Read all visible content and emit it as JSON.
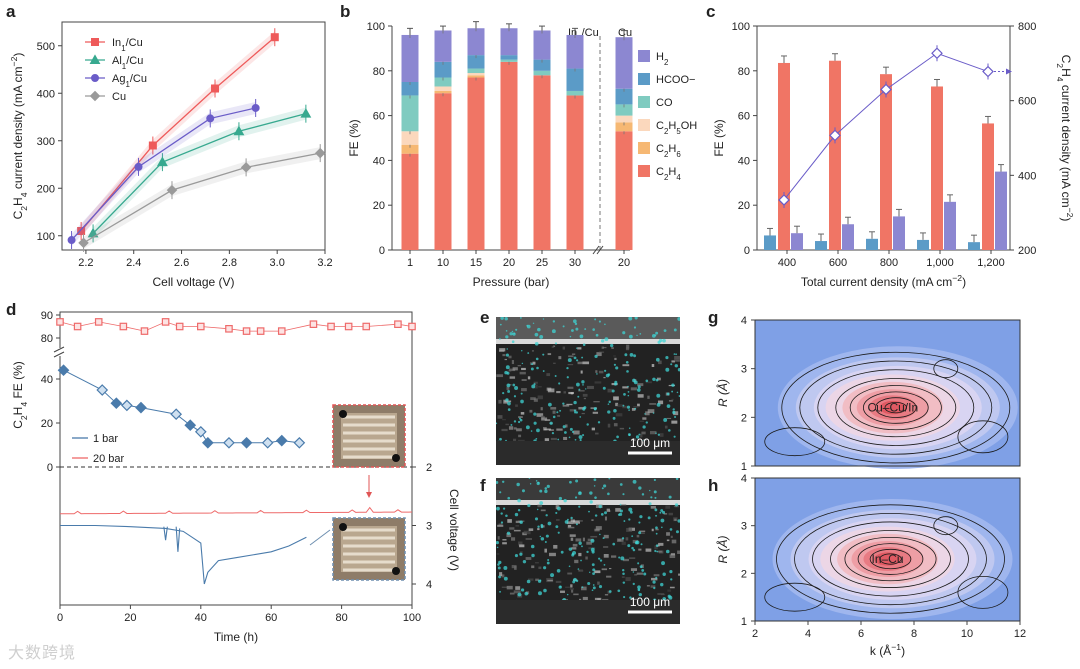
{
  "panels": {
    "a": "a",
    "b": "b",
    "c": "c",
    "d": "d",
    "e": "e",
    "f": "f",
    "g": "g",
    "h": "h"
  },
  "chart_data": [
    {
      "id": "a",
      "type": "scatter",
      "xlabel": "Cell voltage (V)",
      "ylabel": "C2H4 current density (mA cm−2)",
      "xlim": [
        2.1,
        3.2
      ],
      "ylim": [
        70,
        550
      ],
      "xticks": [
        2.2,
        2.4,
        2.6,
        2.8,
        3.0,
        3.2
      ],
      "yticks": [
        100,
        200,
        300,
        400,
        500
      ],
      "legend": "top-left",
      "series": [
        {
          "name": "In1/Cu",
          "color": "#ee5a5a",
          "marker": "square",
          "x": [
            2.18,
            2.48,
            2.74,
            2.99
          ],
          "y": [
            110,
            290,
            410,
            518
          ]
        },
        {
          "name": "Al1/Cu",
          "color": "#37a98f",
          "marker": "triangle",
          "x": [
            2.23,
            2.52,
            2.84,
            3.12
          ],
          "y": [
            105,
            255,
            320,
            357
          ]
        },
        {
          "name": "Ag1/Cu",
          "color": "#6a5cc8",
          "marker": "circle",
          "x": [
            2.14,
            2.42,
            2.72,
            2.91
          ],
          "y": [
            91,
            245,
            347,
            369
          ]
        },
        {
          "name": "Cu",
          "color": "#9a9a9a",
          "marker": "diamond",
          "x": [
            2.19,
            2.56,
            2.87,
            3.18
          ],
          "y": [
            85,
            196,
            244,
            274
          ]
        }
      ]
    },
    {
      "id": "b",
      "type": "bar",
      "xlabel": "Pressure (bar)",
      "ylabel": "FE (%)",
      "ylim": [
        0,
        100
      ],
      "yticks": [
        0,
        20,
        40,
        60,
        80,
        100
      ],
      "categories": [
        "1",
        "10",
        "15",
        "20",
        "25",
        "30",
        "20"
      ],
      "group_labels": [
        "In1/Cu",
        "Cu"
      ],
      "legend": "right",
      "series": [
        {
          "name": "C2H4",
          "color": "#f07565",
          "values": [
            43,
            70,
            77,
            84,
            78,
            69,
            53
          ]
        },
        {
          "name": "C2H6",
          "color": "#f6b873",
          "values": [
            4,
            1,
            1,
            0,
            0,
            0,
            4
          ]
        },
        {
          "name": "C2H5OH",
          "color": "#fbd8bd",
          "values": [
            6,
            2,
            1,
            0,
            0,
            0,
            3
          ]
        },
        {
          "name": "CO",
          "color": "#7fcbc0",
          "values": [
            16,
            4,
            2,
            1,
            2,
            2,
            5
          ]
        },
        {
          "name": "HCOO−",
          "color": "#5b9bc7",
          "values": [
            6,
            7,
            6,
            2,
            5,
            10,
            7
          ]
        },
        {
          "name": "H2",
          "color": "#8c87d1",
          "values": [
            21,
            14,
            12,
            12,
            13,
            15,
            23
          ]
        }
      ],
      "errors": [
        3,
        2,
        3,
        2,
        2,
        3,
        3
      ]
    },
    {
      "id": "c",
      "type": "bar",
      "xlabel": "Total current density (mA cm−2)",
      "ylabel": "FE (%)",
      "y2label": "C2H4 current density (mA cm−2)",
      "ylim": [
        0,
        100
      ],
      "y2lim": [
        200,
        800
      ],
      "yticks": [
        0,
        20,
        40,
        60,
        80,
        100
      ],
      "y2ticks": [
        200,
        400,
        600,
        800
      ],
      "categories": [
        "400",
        "600",
        "800",
        "1,000",
        "1,200"
      ],
      "series": [
        {
          "name": "FE C2H4",
          "color": "#f07565",
          "values": [
            83.5,
            84.5,
            78.5,
            73,
            56.5
          ]
        },
        {
          "name": "FE HCOO−",
          "color": "#5b9bc7",
          "values": [
            6.5,
            4,
            5,
            4.5,
            3.5
          ]
        },
        {
          "name": "FE H2",
          "color": "#8c87d1",
          "values": [
            7.5,
            11.5,
            15,
            21.5,
            35
          ]
        },
        {
          "name": "C2H4 current density",
          "color": "#6a5cc8",
          "axis": "right",
          "values": [
            334,
            507,
            630,
            727,
            678
          ]
        }
      ]
    },
    {
      "id": "d",
      "type": "line",
      "xlabel": "Time (h)",
      "ylabel": "C2H4 FE (%)",
      "y2label": "Cell voltage (V)",
      "xlim": [
        0,
        100
      ],
      "xticks": [
        0,
        20,
        40,
        60,
        80,
        100
      ],
      "yticks_top": [
        80,
        90
      ],
      "yticks_bottom": [
        0,
        20,
        40
      ],
      "y2ticks": [
        2,
        3,
        4
      ],
      "legend": "bottom-left",
      "series": [
        {
          "name": "1 bar",
          "color": "#4a7bab",
          "marker": "diamond",
          "x": [
            1,
            12,
            16,
            19,
            23,
            33,
            37,
            40,
            42,
            48,
            53,
            59,
            63,
            68
          ],
          "y": [
            44,
            35,
            29,
            28,
            27,
            24,
            19,
            16,
            11,
            11,
            11,
            11,
            12,
            11
          ]
        },
        {
          "name": "20 bar",
          "color": "#ee6a6a",
          "marker": "square",
          "x": [
            0,
            5,
            11,
            18,
            24,
            30,
            34,
            40,
            48,
            53,
            57,
            63,
            72,
            77,
            82,
            87,
            96,
            100
          ],
          "y": [
            87,
            85,
            87,
            85,
            83,
            87,
            85,
            85,
            84,
            83,
            83,
            83,
            86,
            85,
            85,
            85,
            86,
            85
          ]
        }
      ],
      "voltage": {
        "20 bar": {
          "x": [
            0,
            20,
            40,
            60,
            80,
            100
          ],
          "y": [
            2.8,
            2.8,
            2.79,
            2.78,
            2.78,
            2.77
          ]
        },
        "1 bar": {
          "x": [
            0,
            10,
            20,
            30,
            35,
            40,
            41,
            42,
            45,
            50,
            55,
            60,
            65,
            70
          ],
          "y": [
            3.0,
            3.0,
            3.02,
            3.05,
            3.1,
            3.3,
            4.0,
            3.8,
            3.6,
            3.55,
            3.5,
            3.45,
            3.35,
            3.2
          ]
        }
      }
    },
    {
      "id": "e",
      "type": "image",
      "scale_bar": "100 μm"
    },
    {
      "id": "f",
      "type": "image",
      "scale_bar": "100 μm"
    },
    {
      "id": "g",
      "type": "heatmap",
      "xlabel": "",
      "ylabel": "R (Å)",
      "yticks": [
        1,
        2,
        3,
        4
      ],
      "annotation": "Cu–Cu/In",
      "peak": {
        "k": 7.2,
        "R": 2.2
      }
    },
    {
      "id": "h",
      "type": "heatmap",
      "xlabel": "k (Å−1)",
      "ylabel": "R (Å)",
      "xticks": [
        2,
        4,
        6,
        8,
        10,
        12
      ],
      "yticks": [
        1,
        2,
        3,
        4
      ],
      "annotation": "In–Cu",
      "peak": {
        "k": 7.0,
        "R": 2.3
      }
    }
  ],
  "watermark": "大数跨境"
}
